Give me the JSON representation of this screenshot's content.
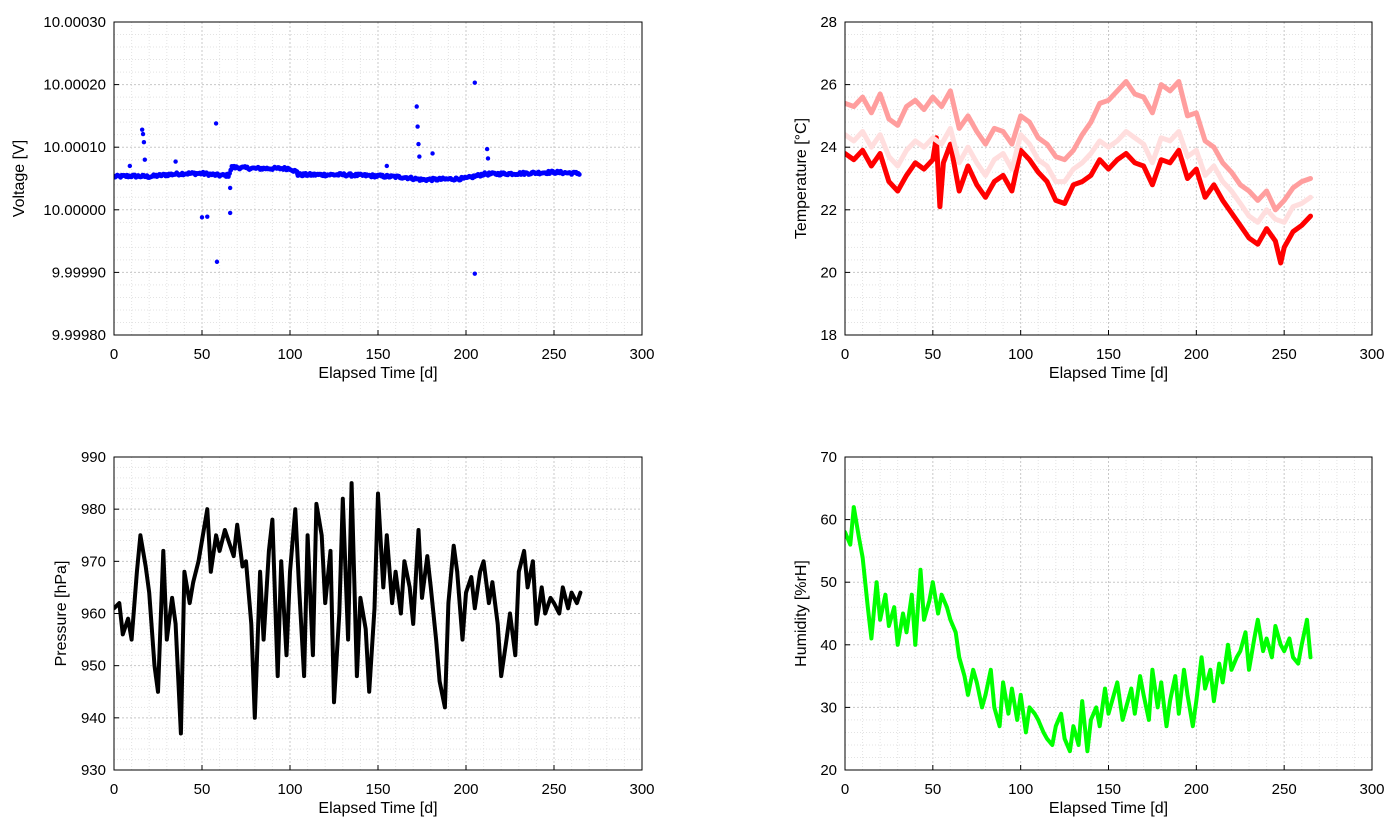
{
  "chart_data": [
    {
      "type": "scatter",
      "xlabel": "Elapsed Time [d]",
      "ylabel": "Voltage [V]",
      "xlim": [
        0,
        300
      ],
      "ylim": [
        9.9998,
        10.0003
      ],
      "xticks": [
        "0",
        "50",
        "100",
        "150",
        "200",
        "250",
        "300"
      ],
      "yticks": [
        "9.99980",
        "9.99990",
        "10.00000",
        "10.00010",
        "10.00020",
        "10.00030"
      ],
      "grid": true,
      "colors": [
        "#0000ff"
      ],
      "series": [
        {
          "color": "#0000ff",
          "baseline": [
            [
              0,
              10.000053
            ],
            [
              10,
              10.000054
            ],
            [
              20,
              10.000053
            ],
            [
              30,
              10.000056
            ],
            [
              40,
              10.000058
            ],
            [
              50,
              10.000058
            ],
            [
              60,
              10.000055
            ],
            [
              65,
              10.000055
            ],
            [
              67,
              10.000068
            ],
            [
              80,
              10.000066
            ],
            [
              100,
              10.000066
            ],
            [
              104,
              10.00006
            ],
            [
              104.5,
              10.000056
            ],
            [
              130,
              10.000056
            ],
            [
              150,
              10.000054
            ],
            [
              165,
              10.000052
            ],
            [
              175,
              10.000048
            ],
            [
              190,
              10.000049
            ],
            [
              200,
              10.00005
            ],
            [
              210,
              10.000057
            ],
            [
              230,
              10.000058
            ],
            [
              250,
              10.00006
            ],
            [
              265,
              10.000058
            ]
          ],
          "points": [
            [
              16,
              10.000128
            ],
            [
              16.5,
              10.000121
            ],
            [
              17,
              10.000108
            ],
            [
              17.5,
              10.00008
            ],
            [
              35,
              10.000077
            ],
            [
              50,
              9.999988
            ],
            [
              53,
              9.999989
            ],
            [
              58,
              10.000138
            ],
            [
              58.5,
              9.999917
            ],
            [
              66,
              9.999995
            ],
            [
              66,
              10.000035
            ],
            [
              172,
              10.000165
            ],
            [
              172.5,
              10.000133
            ],
            [
              173,
              10.000105
            ],
            [
              173.5,
              10.000085
            ],
            [
              181,
              10.00009
            ],
            [
              205,
              10.000203
            ],
            [
              205,
              9.999898
            ],
            [
              212,
              10.000097
            ],
            [
              212.5,
              10.000082
            ],
            [
              9,
              10.00007
            ],
            [
              155,
              10.00007
            ]
          ]
        }
      ]
    },
    {
      "type": "line",
      "xlabel": "Elapsed Time [d]",
      "ylabel": "Temperature [°C]",
      "xlim": [
        0,
        300
      ],
      "ylim": [
        18,
        28
      ],
      "xticks": [
        "0",
        "50",
        "100",
        "150",
        "200",
        "250",
        "300"
      ],
      "yticks": [
        "18",
        "20",
        "22",
        "24",
        "26",
        "28"
      ],
      "grid": true,
      "colors": [
        "#ff0000",
        "#ffdede",
        "#ff9e9e"
      ],
      "series": [
        {
          "color": "#ff0000",
          "x": [
            0,
            5,
            10,
            15,
            20,
            25,
            30,
            35,
            40,
            45,
            50,
            52,
            54,
            56,
            60,
            65,
            70,
            75,
            80,
            85,
            90,
            95,
            100,
            105,
            110,
            115,
            120,
            125,
            130,
            135,
            140,
            145,
            150,
            155,
            160,
            165,
            170,
            175,
            180,
            185,
            190,
            195,
            200,
            205,
            210,
            215,
            220,
            225,
            230,
            235,
            240,
            245,
            248,
            250,
            255,
            260,
            265
          ],
          "y": [
            23.8,
            23.6,
            23.9,
            23.4,
            23.8,
            22.9,
            22.6,
            23.1,
            23.5,
            23.3,
            23.6,
            24.3,
            22.1,
            23.5,
            24.1,
            22.6,
            23.4,
            22.8,
            22.4,
            22.9,
            23.1,
            22.6,
            23.9,
            23.6,
            23.2,
            22.9,
            22.3,
            22.2,
            22.8,
            22.9,
            23.1,
            23.6,
            23.3,
            23.6,
            23.8,
            23.5,
            23.4,
            22.8,
            23.6,
            23.5,
            23.9,
            23.0,
            23.3,
            22.4,
            22.8,
            22.3,
            21.9,
            21.5,
            21.1,
            20.9,
            21.4,
            21.0,
            20.3,
            20.8,
            21.3,
            21.5,
            21.8
          ]
        },
        {
          "color": "#ffdede",
          "x": [
            0,
            5,
            10,
            15,
            20,
            25,
            30,
            35,
            40,
            45,
            50,
            55,
            60,
            65,
            70,
            75,
            80,
            85,
            90,
            95,
            100,
            105,
            110,
            115,
            120,
            125,
            130,
            135,
            140,
            145,
            150,
            155,
            160,
            165,
            170,
            175,
            180,
            185,
            190,
            195,
            200,
            205,
            210,
            215,
            220,
            225,
            230,
            235,
            240,
            245,
            250,
            255,
            260,
            265
          ],
          "y": [
            24.4,
            24.2,
            24.5,
            24.0,
            24.4,
            23.7,
            23.4,
            23.9,
            24.2,
            24.0,
            24.3,
            24.1,
            24.6,
            23.5,
            24.0,
            23.5,
            23.1,
            23.6,
            23.8,
            23.3,
            24.4,
            24.1,
            23.6,
            23.4,
            22.9,
            22.9,
            23.3,
            23.5,
            23.8,
            24.2,
            24.0,
            24.2,
            24.5,
            24.3,
            24.1,
            23.5,
            24.3,
            24.2,
            24.5,
            23.7,
            23.9,
            23.1,
            23.4,
            22.9,
            22.6,
            22.2,
            21.8,
            21.6,
            22.0,
            21.7,
            21.6,
            22.1,
            22.2,
            22.4
          ]
        },
        {
          "color": "#ff9e9e",
          "x": [
            0,
            5,
            10,
            15,
            20,
            25,
            30,
            35,
            40,
            45,
            50,
            55,
            60,
            65,
            70,
            75,
            80,
            85,
            90,
            95,
            100,
            105,
            110,
            115,
            120,
            125,
            130,
            135,
            140,
            145,
            150,
            155,
            160,
            165,
            170,
            175,
            180,
            185,
            190,
            195,
            200,
            205,
            210,
            215,
            220,
            225,
            230,
            235,
            240,
            245,
            250,
            255,
            260,
            265
          ],
          "y": [
            25.4,
            25.3,
            25.6,
            25.1,
            25.7,
            24.9,
            24.7,
            25.3,
            25.5,
            25.2,
            25.6,
            25.3,
            25.8,
            24.6,
            25.0,
            24.5,
            24.1,
            24.6,
            24.5,
            24.1,
            25.0,
            24.8,
            24.3,
            24.1,
            23.7,
            23.6,
            23.9,
            24.4,
            24.8,
            25.4,
            25.5,
            25.8,
            26.1,
            25.7,
            25.6,
            25.1,
            26.0,
            25.8,
            26.1,
            25.0,
            25.1,
            24.2,
            24.0,
            23.5,
            23.2,
            22.8,
            22.6,
            22.3,
            22.6,
            22.0,
            22.3,
            22.7,
            22.9,
            23.0
          ]
        }
      ]
    },
    {
      "type": "line",
      "xlabel": "Elapsed Time [d]",
      "ylabel": "Pressure [hPa]",
      "xlim": [
        0,
        300
      ],
      "ylim": [
        930,
        990
      ],
      "xticks": [
        "0",
        "50",
        "100",
        "150",
        "200",
        "250",
        "300"
      ],
      "yticks": [
        "930",
        "940",
        "950",
        "960",
        "970",
        "980",
        "990"
      ],
      "grid": true,
      "colors": [
        "#000000"
      ],
      "series": [
        {
          "color": "#000000",
          "x": [
            0,
            3,
            5,
            8,
            10,
            13,
            15,
            18,
            20,
            23,
            25,
            28,
            30,
            33,
            35,
            38,
            40,
            43,
            45,
            48,
            50,
            53,
            55,
            58,
            60,
            63,
            65,
            68,
            70,
            73,
            75,
            78,
            80,
            83,
            85,
            88,
            90,
            93,
            95,
            98,
            100,
            103,
            105,
            108,
            110,
            113,
            115,
            118,
            120,
            123,
            125,
            128,
            130,
            133,
            135,
            138,
            140,
            143,
            145,
            148,
            150,
            153,
            155,
            158,
            160,
            163,
            165,
            168,
            170,
            173,
            175,
            178,
            180,
            183,
            185,
            188,
            190,
            193,
            195,
            198,
            200,
            203,
            205,
            208,
            210,
            213,
            215,
            218,
            220,
            223,
            225,
            228,
            230,
            233,
            235,
            238,
            240,
            243,
            245,
            248,
            250,
            253,
            255,
            258,
            260,
            263,
            265
          ],
          "y": [
            961,
            962,
            956,
            959,
            955,
            968,
            975,
            969,
            964,
            950,
            945,
            972,
            955,
            963,
            958,
            937,
            968,
            962,
            966,
            970,
            974,
            980,
            968,
            975,
            972,
            976,
            974,
            971,
            977,
            969,
            970,
            958,
            940,
            968,
            955,
            972,
            978,
            948,
            970,
            952,
            968,
            980,
            966,
            948,
            975,
            952,
            981,
            975,
            962,
            972,
            943,
            960,
            982,
            955,
            985,
            948,
            963,
            957,
            945,
            961,
            983,
            965,
            975,
            962,
            968,
            960,
            970,
            965,
            958,
            976,
            963,
            971,
            965,
            955,
            947,
            942,
            962,
            973,
            968,
            955,
            964,
            967,
            961,
            968,
            970,
            962,
            966,
            958,
            948,
            955,
            960,
            952,
            968,
            972,
            965,
            970,
            958,
            965,
            960,
            963,
            962,
            960,
            965,
            961,
            964,
            962,
            964
          ]
        }
      ]
    },
    {
      "type": "line",
      "xlabel": "Elapsed Time [d]",
      "ylabel": "Humidity [%rH]",
      "xlim": [
        0,
        300
      ],
      "ylim": [
        20,
        70
      ],
      "xticks": [
        "0",
        "50",
        "100",
        "150",
        "200",
        "250",
        "300"
      ],
      "yticks": [
        "20",
        "30",
        "40",
        "50",
        "60",
        "70"
      ],
      "grid": true,
      "colors": [
        "#00ff00"
      ],
      "series": [
        {
          "color": "#00ff00",
          "x": [
            0,
            3,
            5,
            8,
            10,
            13,
            15,
            18,
            20,
            23,
            25,
            28,
            30,
            33,
            35,
            38,
            40,
            43,
            45,
            48,
            50,
            53,
            55,
            58,
            60,
            63,
            65,
            68,
            70,
            73,
            75,
            78,
            80,
            83,
            85,
            88,
            90,
            93,
            95,
            98,
            100,
            103,
            105,
            108,
            110,
            113,
            115,
            118,
            120,
            123,
            125,
            128,
            130,
            133,
            135,
            138,
            140,
            143,
            145,
            148,
            150,
            153,
            155,
            158,
            160,
            163,
            165,
            168,
            170,
            173,
            175,
            178,
            180,
            183,
            185,
            188,
            190,
            193,
            195,
            198,
            200,
            203,
            205,
            208,
            210,
            213,
            215,
            218,
            220,
            223,
            225,
            228,
            230,
            233,
            235,
            238,
            240,
            243,
            245,
            248,
            250,
            253,
            255,
            258,
            260,
            263,
            265
          ],
          "y": [
            58,
            56,
            62,
            57,
            54,
            46,
            41,
            50,
            44,
            48,
            43,
            46,
            40,
            45,
            42,
            48,
            40,
            52,
            44,
            47,
            50,
            45,
            48,
            46,
            44,
            42,
            38,
            35,
            32,
            36,
            34,
            30,
            32,
            36,
            30,
            27,
            34,
            29,
            33,
            28,
            32,
            26,
            30,
            29,
            28,
            26,
            25,
            24,
            27,
            29,
            25,
            23,
            27,
            24,
            31,
            23,
            28,
            30,
            27,
            33,
            29,
            32,
            34,
            28,
            30,
            33,
            29,
            35,
            32,
            28,
            36,
            30,
            34,
            27,
            31,
            35,
            29,
            36,
            32,
            27,
            31,
            38,
            33,
            36,
            31,
            37,
            34,
            40,
            36,
            38,
            39,
            42,
            36,
            41,
            44,
            39,
            41,
            38,
            43,
            40,
            39,
            41,
            38,
            37,
            40,
            44,
            38
          ]
        }
      ]
    }
  ]
}
